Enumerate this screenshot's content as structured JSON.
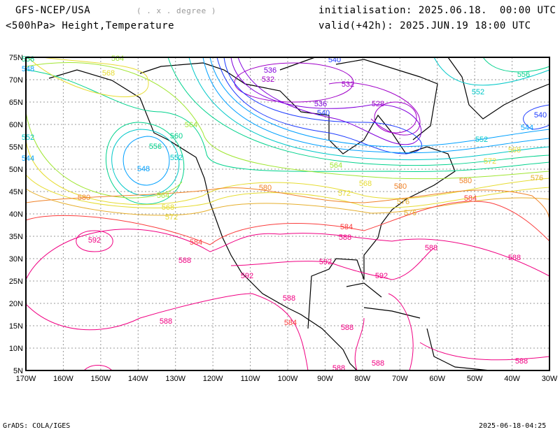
{
  "header": {
    "model": "GFS-NCEP/USA",
    "resolution": "( . x . degree )",
    "field": "<500hPa> Height,Temperature",
    "init": "initialisation: 2025.06.18.  00:00 UTC",
    "valid": "valid(+42h): 2025.JUN.19 18:00 UTC"
  },
  "axes": {
    "lat_labels": [
      "75N",
      "70N",
      "65N",
      "60N",
      "55N",
      "50N",
      "45N",
      "40N",
      "35N",
      "30N",
      "25N",
      "20N",
      "15N",
      "10N",
      "5N"
    ],
    "lon_labels": [
      "170W",
      "160W",
      "150W",
      "140W",
      "130W",
      "120W",
      "110W",
      "100W",
      "90W",
      "80W",
      "70W",
      "60W",
      "50W",
      "40W",
      "30W"
    ]
  },
  "contour_labels": [
    "564",
    "568",
    "536",
    "532",
    "540",
    "532",
    "528",
    "536",
    "540",
    "556",
    "552",
    "540",
    "544",
    "560",
    "556",
    "552",
    "548",
    "564",
    "564",
    "568",
    "572",
    "576",
    "580",
    "580",
    "580",
    "584",
    "576",
    "572",
    "568",
    "564",
    "552",
    "568",
    "572",
    "576",
    "580",
    "584",
    "592",
    "584",
    "588",
    "588",
    "592",
    "592",
    "592",
    "588",
    "588",
    "584",
    "588",
    "588",
    "588",
    "588",
    "588",
    "588",
    "552",
    "556",
    "548",
    "544"
  ],
  "colors": {
    "c528": "#a000c8",
    "c536": "#8200dc",
    "c540": "#1e3cff",
    "c544": "#00a0ff",
    "c552": "#00c8c8",
    "c556": "#00d28c",
    "c564": "#a0e632",
    "c568": "#e6dc32",
    "c576": "#e6af2d",
    "c580": "#f08228",
    "c584": "#fa3c3c",
    "c588": "#f00082"
  },
  "footer": {
    "left": "GrADS: COLA/IGES",
    "right": "2025-06-18-04:25"
  }
}
